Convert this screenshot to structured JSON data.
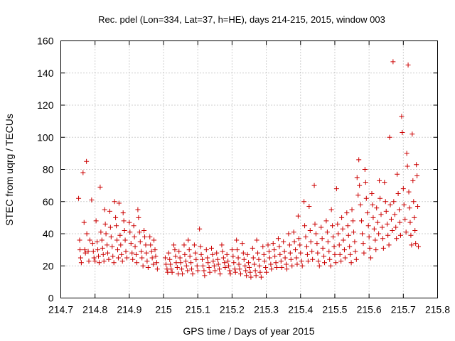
{
  "chart_data": {
    "type": "scatter",
    "title": "Rec. pdel (Lon=334, Lat=37, h=HE), days 214-215, 2015, window 003",
    "xlabel": "GPS time / Days of year 2015",
    "ylabel": "STEC from uqrg / TECUs",
    "xlim": [
      214.7,
      215.8
    ],
    "ylim": [
      0,
      160
    ],
    "xticks": [
      214.7,
      214.8,
      214.9,
      215,
      215.1,
      215.2,
      215.3,
      215.4,
      215.5,
      215.6,
      215.7,
      215.8
    ],
    "xtick_labels": [
      "214.7",
      "214.8",
      "214.9",
      "215",
      "215.1",
      "215.2",
      "215.3",
      "215.4",
      "215.5",
      "215.6",
      "215.7",
      "215.8"
    ],
    "yticks": [
      0,
      20,
      40,
      60,
      80,
      100,
      120,
      140,
      160
    ],
    "ytick_labels": [
      "0",
      "20",
      "40",
      "60",
      "80",
      "100",
      "120",
      "140",
      "160"
    ],
    "grid": true,
    "marker": "plus",
    "color": "#cc0000",
    "points": [
      [
        214.752,
        62
      ],
      [
        214.755,
        36
      ],
      [
        214.756,
        30
      ],
      [
        214.758,
        25
      ],
      [
        214.76,
        22
      ],
      [
        214.765,
        78
      ],
      [
        214.768,
        47
      ],
      [
        214.77,
        30
      ],
      [
        214.772,
        28
      ],
      [
        214.775,
        85
      ],
      [
        214.776,
        40
      ],
      [
        214.78,
        29
      ],
      [
        214.782,
        23
      ],
      [
        214.785,
        36
      ],
      [
        214.79,
        61
      ],
      [
        214.793,
        34
      ],
      [
        214.795,
        29
      ],
      [
        214.797,
        25
      ],
      [
        214.8,
        23
      ],
      [
        214.803,
        48
      ],
      [
        214.806,
        35
      ],
      [
        214.808,
        30
      ],
      [
        214.81,
        26
      ],
      [
        214.812,
        22
      ],
      [
        214.815,
        69
      ],
      [
        214.817,
        41
      ],
      [
        214.82,
        36
      ],
      [
        214.822,
        31
      ],
      [
        214.824,
        27
      ],
      [
        214.826,
        23
      ],
      [
        214.828,
        55
      ],
      [
        214.83,
        46
      ],
      [
        214.832,
        40
      ],
      [
        214.835,
        33
      ],
      [
        214.837,
        28
      ],
      [
        214.84,
        24
      ],
      [
        214.843,
        54
      ],
      [
        214.845,
        44
      ],
      [
        214.847,
        38
      ],
      [
        214.85,
        32
      ],
      [
        214.852,
        26
      ],
      [
        214.855,
        22
      ],
      [
        214.857,
        60
      ],
      [
        214.86,
        50
      ],
      [
        214.862,
        45
      ],
      [
        214.864,
        36
      ],
      [
        214.866,
        30
      ],
      [
        214.868,
        25
      ],
      [
        214.87,
        59
      ],
      [
        214.873,
        39
      ],
      [
        214.875,
        33
      ],
      [
        214.877,
        27
      ],
      [
        214.88,
        23
      ],
      [
        214.882,
        53
      ],
      [
        214.884,
        48
      ],
      [
        214.886,
        42
      ],
      [
        214.888,
        36
      ],
      [
        214.89,
        29
      ],
      [
        214.893,
        25
      ],
      [
        214.9,
        47
      ],
      [
        214.902,
        41
      ],
      [
        214.905,
        34
      ],
      [
        214.908,
        28
      ],
      [
        214.91,
        24
      ],
      [
        214.913,
        45
      ],
      [
        214.915,
        38
      ],
      [
        214.917,
        32
      ],
      [
        214.92,
        27
      ],
      [
        214.922,
        22
      ],
      [
        214.925,
        55
      ],
      [
        214.927,
        50
      ],
      [
        214.93,
        41
      ],
      [
        214.932,
        35
      ],
      [
        214.935,
        29
      ],
      [
        214.937,
        25
      ],
      [
        214.94,
        20
      ],
      [
        214.943,
        42
      ],
      [
        214.945,
        38
      ],
      [
        214.948,
        33
      ],
      [
        214.95,
        28
      ],
      [
        214.952,
        23
      ],
      [
        214.955,
        19
      ],
      [
        214.96,
        38
      ],
      [
        214.962,
        33
      ],
      [
        214.965,
        29
      ],
      [
        214.967,
        25
      ],
      [
        214.97,
        21
      ],
      [
        214.972,
        36
      ],
      [
        214.975,
        30
      ],
      [
        214.977,
        26
      ],
      [
        214.98,
        22
      ],
      [
        214.982,
        18
      ],
      [
        215.005,
        25
      ],
      [
        215.007,
        21
      ],
      [
        215.01,
        18
      ],
      [
        215.012,
        16
      ],
      [
        215.015,
        28
      ],
      [
        215.018,
        24
      ],
      [
        215.02,
        21
      ],
      [
        215.022,
        18
      ],
      [
        215.025,
        16
      ],
      [
        215.03,
        33
      ],
      [
        215.033,
        30
      ],
      [
        215.035,
        26
      ],
      [
        215.037,
        22
      ],
      [
        215.04,
        19
      ],
      [
        215.043,
        15
      ],
      [
        215.045,
        29
      ],
      [
        215.048,
        25
      ],
      [
        215.05,
        22
      ],
      [
        215.053,
        18
      ],
      [
        215.055,
        15
      ],
      [
        215.06,
        33
      ],
      [
        215.062,
        27
      ],
      [
        215.065,
        23
      ],
      [
        215.067,
        20
      ],
      [
        215.07,
        17
      ],
      [
        215.072,
        36
      ],
      [
        215.075,
        30
      ],
      [
        215.077,
        26
      ],
      [
        215.08,
        22
      ],
      [
        215.082,
        18
      ],
      [
        215.085,
        15
      ],
      [
        215.09,
        33
      ],
      [
        215.093,
        28
      ],
      [
        215.095,
        24
      ],
      [
        215.098,
        20
      ],
      [
        215.1,
        17
      ],
      [
        215.105,
        43
      ],
      [
        215.108,
        32
      ],
      [
        215.11,
        27
      ],
      [
        215.113,
        24
      ],
      [
        215.115,
        20
      ],
      [
        215.118,
        17
      ],
      [
        215.12,
        14
      ],
      [
        215.125,
        30
      ],
      [
        215.128,
        25
      ],
      [
        215.13,
        22
      ],
      [
        215.133,
        19
      ],
      [
        215.135,
        16
      ],
      [
        215.14,
        31
      ],
      [
        215.143,
        27
      ],
      [
        215.145,
        23
      ],
      [
        215.148,
        20
      ],
      [
        215.15,
        17
      ],
      [
        215.155,
        28
      ],
      [
        215.158,
        24
      ],
      [
        215.16,
        21
      ],
      [
        215.163,
        18
      ],
      [
        215.165,
        15
      ],
      [
        215.17,
        33
      ],
      [
        215.172,
        29
      ],
      [
        215.175,
        25
      ],
      [
        215.178,
        22
      ],
      [
        215.18,
        19
      ],
      [
        215.185,
        27
      ],
      [
        215.188,
        23
      ],
      [
        215.19,
        20
      ],
      [
        215.193,
        17
      ],
      [
        215.195,
        15
      ],
      [
        215.2,
        30
      ],
      [
        215.203,
        26
      ],
      [
        215.205,
        22
      ],
      [
        215.208,
        18
      ],
      [
        215.21,
        16
      ],
      [
        215.213,
        36
      ],
      [
        215.215,
        30
      ],
      [
        215.218,
        25
      ],
      [
        215.22,
        21
      ],
      [
        215.222,
        18
      ],
      [
        215.225,
        15
      ],
      [
        215.23,
        34
      ],
      [
        215.233,
        28
      ],
      [
        215.235,
        24
      ],
      [
        215.238,
        20
      ],
      [
        215.24,
        17
      ],
      [
        215.242,
        14
      ],
      [
        215.245,
        27
      ],
      [
        215.248,
        22
      ],
      [
        215.25,
        19
      ],
      [
        215.253,
        16
      ],
      [
        215.255,
        13
      ],
      [
        215.26,
        31
      ],
      [
        215.262,
        25
      ],
      [
        215.265,
        21
      ],
      [
        215.268,
        17
      ],
      [
        215.27,
        14
      ],
      [
        215.272,
        36
      ],
      [
        215.275,
        28
      ],
      [
        215.278,
        24
      ],
      [
        215.28,
        20
      ],
      [
        215.282,
        16
      ],
      [
        215.285,
        13
      ],
      [
        215.29,
        32
      ],
      [
        215.293,
        27
      ],
      [
        215.295,
        23
      ],
      [
        215.298,
        19
      ],
      [
        215.3,
        16
      ],
      [
        215.305,
        33
      ],
      [
        215.308,
        29
      ],
      [
        215.31,
        25
      ],
      [
        215.313,
        21
      ],
      [
        215.315,
        18
      ],
      [
        215.32,
        34
      ],
      [
        215.323,
        30
      ],
      [
        215.325,
        26
      ],
      [
        215.328,
        22
      ],
      [
        215.33,
        19
      ],
      [
        215.335,
        37
      ],
      [
        215.338,
        32
      ],
      [
        215.34,
        27
      ],
      [
        215.343,
        23
      ],
      [
        215.345,
        19
      ],
      [
        215.35,
        35
      ],
      [
        215.353,
        29
      ],
      [
        215.355,
        25
      ],
      [
        215.358,
        21
      ],
      [
        215.36,
        18
      ],
      [
        215.365,
        40
      ],
      [
        215.368,
        33
      ],
      [
        215.37,
        28
      ],
      [
        215.372,
        24
      ],
      [
        215.375,
        20
      ],
      [
        215.38,
        41
      ],
      [
        215.382,
        35
      ],
      [
        215.385,
        30
      ],
      [
        215.388,
        25
      ],
      [
        215.39,
        21
      ],
      [
        215.393,
        51
      ],
      [
        215.395,
        37
      ],
      [
        215.398,
        33
      ],
      [
        215.4,
        28
      ],
      [
        215.403,
        23
      ],
      [
        215.405,
        20
      ],
      [
        215.41,
        60
      ],
      [
        215.412,
        45
      ],
      [
        215.415,
        38
      ],
      [
        215.418,
        32
      ],
      [
        215.42,
        27
      ],
      [
        215.422,
        23
      ],
      [
        215.425,
        57
      ],
      [
        215.428,
        42
      ],
      [
        215.43,
        35
      ],
      [
        215.433,
        29
      ],
      [
        215.435,
        24
      ],
      [
        215.44,
        70
      ],
      [
        215.442,
        46
      ],
      [
        215.445,
        40
      ],
      [
        215.448,
        34
      ],
      [
        215.45,
        28
      ],
      [
        215.452,
        23
      ],
      [
        215.455,
        20
      ],
      [
        215.46,
        44
      ],
      [
        215.463,
        37
      ],
      [
        215.465,
        31
      ],
      [
        215.468,
        26
      ],
      [
        215.47,
        22
      ],
      [
        215.475,
        48
      ],
      [
        215.478,
        41
      ],
      [
        215.48,
        35
      ],
      [
        215.483,
        29
      ],
      [
        215.485,
        24
      ],
      [
        215.488,
        20
      ],
      [
        215.49,
        55
      ],
      [
        215.493,
        45
      ],
      [
        215.495,
        38
      ],
      [
        215.498,
        32
      ],
      [
        215.5,
        27
      ],
      [
        215.503,
        22
      ],
      [
        215.505,
        68
      ],
      [
        215.508,
        46
      ],
      [
        215.51,
        40
      ],
      [
        215.513,
        33
      ],
      [
        215.515,
        27
      ],
      [
        215.518,
        23
      ],
      [
        215.52,
        50
      ],
      [
        215.523,
        43
      ],
      [
        215.525,
        36
      ],
      [
        215.528,
        30
      ],
      [
        215.53,
        25
      ],
      [
        215.535,
        53
      ],
      [
        215.538,
        45
      ],
      [
        215.54,
        39
      ],
      [
        215.543,
        32
      ],
      [
        215.545,
        27
      ],
      [
        215.548,
        22
      ],
      [
        215.55,
        55
      ],
      [
        215.553,
        48
      ],
      [
        215.555,
        41
      ],
      [
        215.558,
        35
      ],
      [
        215.56,
        29
      ],
      [
        215.563,
        24
      ],
      [
        215.565,
        75
      ],
      [
        215.568,
        64
      ],
      [
        215.57,
        86
      ],
      [
        215.572,
        70
      ],
      [
        215.575,
        58
      ],
      [
        215.578,
        48
      ],
      [
        215.58,
        40
      ],
      [
        215.583,
        34
      ],
      [
        215.585,
        28
      ],
      [
        215.588,
        80
      ],
      [
        215.59,
        72
      ],
      [
        215.592,
        62
      ],
      [
        215.595,
        53
      ],
      [
        215.598,
        45
      ],
      [
        215.6,
        38
      ],
      [
        215.602,
        31
      ],
      [
        215.605,
        25
      ],
      [
        215.608,
        65
      ],
      [
        215.61,
        58
      ],
      [
        215.612,
        50
      ],
      [
        215.615,
        43
      ],
      [
        215.618,
        36
      ],
      [
        215.62,
        30
      ],
      [
        215.622,
        56
      ],
      [
        215.625,
        47
      ],
      [
        215.628,
        40
      ],
      [
        215.63,
        73
      ],
      [
        215.632,
        62
      ],
      [
        215.635,
        52
      ],
      [
        215.638,
        44
      ],
      [
        215.64,
        37
      ],
      [
        215.642,
        31
      ],
      [
        215.645,
        72
      ],
      [
        215.648,
        60
      ],
      [
        215.65,
        54
      ],
      [
        215.653,
        46
      ],
      [
        215.655,
        39
      ],
      [
        215.658,
        33
      ],
      [
        215.66,
        100
      ],
      [
        215.662,
        58
      ],
      [
        215.665,
        49
      ],
      [
        215.668,
        42
      ],
      [
        215.67,
        147
      ],
      [
        215.672,
        60
      ],
      [
        215.675,
        52
      ],
      [
        215.678,
        44
      ],
      [
        215.68,
        37
      ],
      [
        215.682,
        77
      ],
      [
        215.685,
        65
      ],
      [
        215.688,
        55
      ],
      [
        215.69,
        47
      ],
      [
        215.692,
        39
      ],
      [
        215.695,
        113
      ],
      [
        215.697,
        103
      ],
      [
        215.7,
        68
      ],
      [
        215.702,
        58
      ],
      [
        215.705,
        49
      ],
      [
        215.708,
        41
      ],
      [
        215.71,
        90
      ],
      [
        215.712,
        82
      ],
      [
        215.714,
        145
      ],
      [
        215.716,
        66
      ],
      [
        215.718,
        56
      ],
      [
        215.72,
        47
      ],
      [
        215.722,
        39
      ],
      [
        215.724,
        33
      ],
      [
        215.726,
        102
      ],
      [
        215.728,
        73
      ],
      [
        215.73,
        60
      ],
      [
        215.732,
        50
      ],
      [
        215.734,
        42
      ],
      [
        215.736,
        34
      ],
      [
        215.738,
        83
      ],
      [
        215.74,
        76
      ],
      [
        215.742,
        57
      ],
      [
        215.744,
        32
      ]
    ]
  }
}
